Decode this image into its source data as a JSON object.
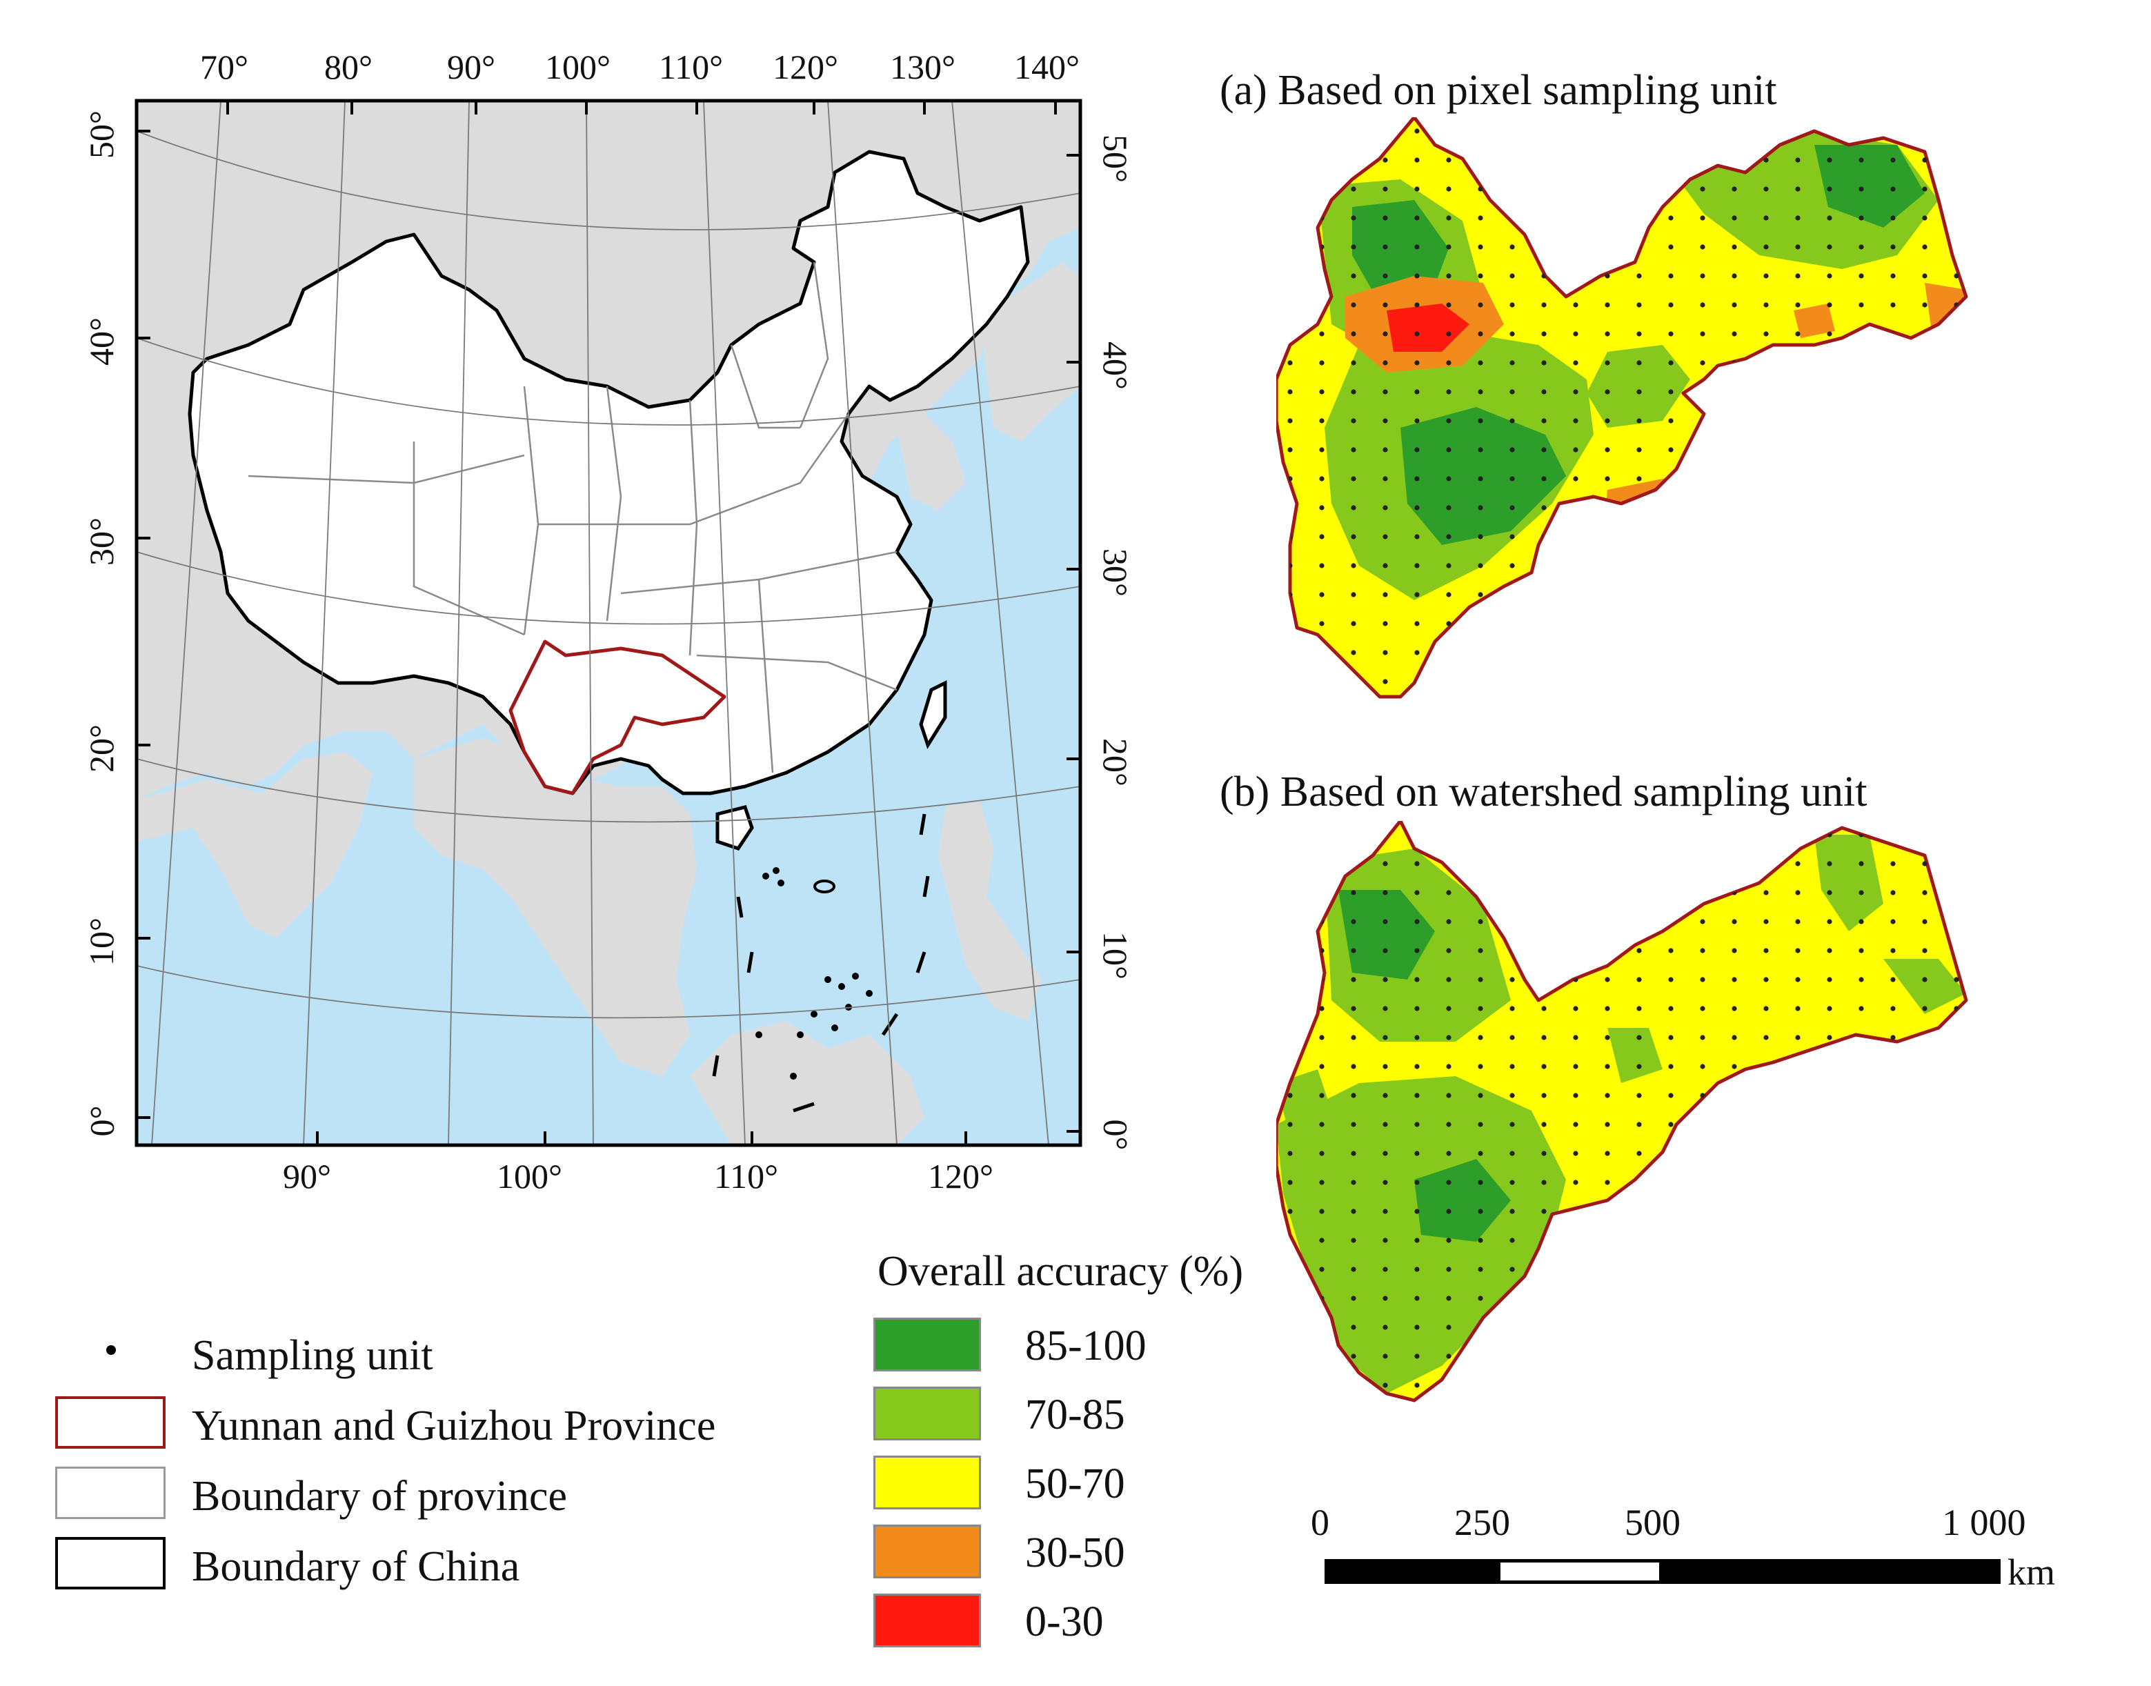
{
  "overview_map": {
    "top_lon_ticks": [
      "70°",
      "80°",
      "90°",
      "100°",
      "110°",
      "120°",
      "130°",
      "140°"
    ],
    "bottom_lon_ticks": [
      "90°",
      "100°",
      "110°",
      "120°"
    ],
    "left_lat_ticks": [
      "50°",
      "40°",
      "30°",
      "20°",
      "10°",
      "0°"
    ],
    "right_lat_ticks": [
      "50°",
      "40°",
      "30°",
      "20°",
      "10°",
      "0°"
    ],
    "colors": {
      "land_other": "#dcdcdc",
      "sea": "#bfe3f6",
      "china": "#ffffff",
      "china_border": "#000000",
      "study_border": "#a01818",
      "province_border": "#8a8a8a"
    }
  },
  "panels": [
    {
      "title": "(a) Based on pixel sampling unit"
    },
    {
      "title": "(b) Based on watershed sampling unit"
    }
  ],
  "legend_features": [
    {
      "label": "Sampling unit",
      "symbol": "dot"
    },
    {
      "label": "Yunnan and Guizhou Province",
      "symbol": "red-box"
    },
    {
      "label": "Boundary of province",
      "symbol": "gray-box"
    },
    {
      "label": "Boundary of China",
      "symbol": "black-box"
    }
  ],
  "legend_accuracy": {
    "title": "Overall accuracy (%)",
    "classes": [
      {
        "label": "85-100",
        "color": "#2e9e2a"
      },
      {
        "label": "70-85",
        "color": "#86c91c"
      },
      {
        "label": "50-70",
        "color": "#ffff00"
      },
      {
        "label": "30-50",
        "color": "#f28a1c"
      },
      {
        "label": "0-30",
        "color": "#ff1a10"
      }
    ]
  },
  "scale_bar": {
    "labels": [
      "0",
      "250",
      "500",
      "1 000"
    ],
    "unit": "km"
  }
}
